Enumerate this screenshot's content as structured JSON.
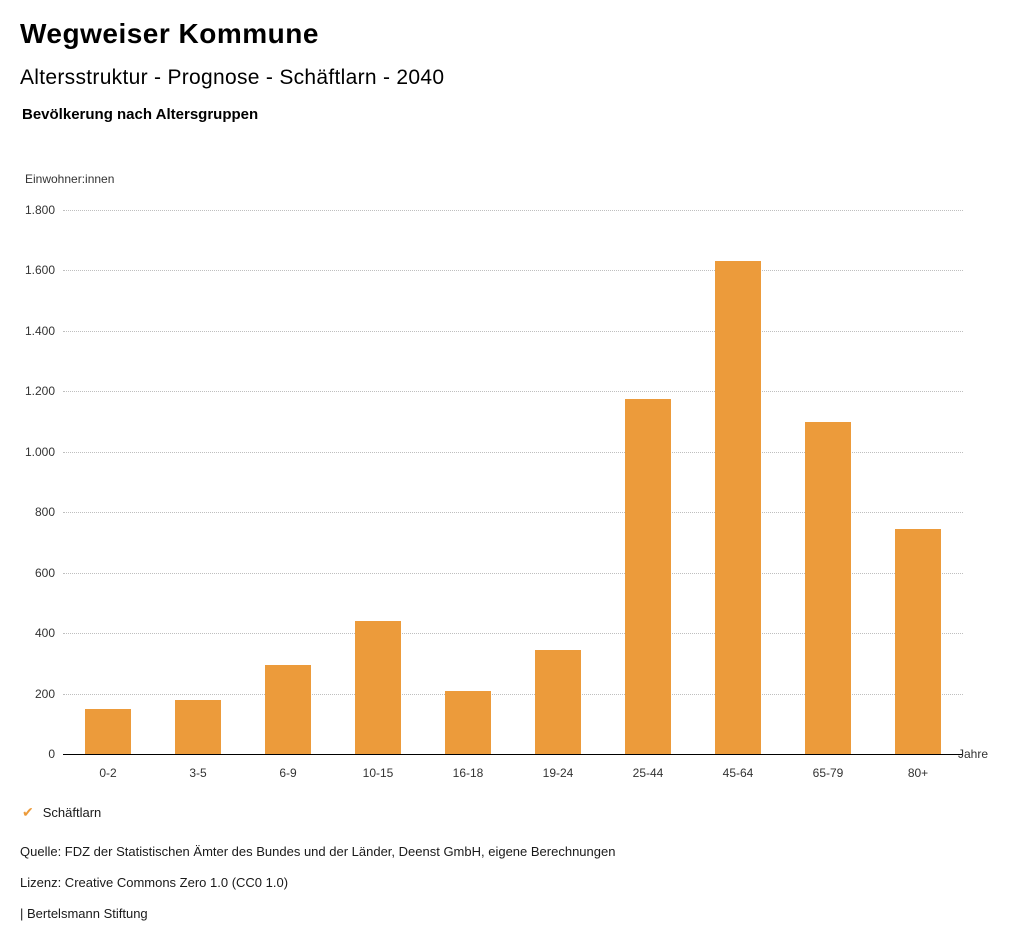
{
  "header": {
    "title": "Wegweiser Kommune",
    "subtitle": "Altersstruktur - Prognose - Schäftlarn - 2040",
    "section_title": "Bevölkerung nach Altersgruppen"
  },
  "chart_data": {
    "type": "bar",
    "title": "Bevölkerung nach Altersgruppen",
    "ylabel": "Einwohner:innen",
    "xlabel": "Jahre",
    "categories": [
      "0-2",
      "3-5",
      "6-9",
      "10-15",
      "16-18",
      "19-24",
      "25-44",
      "45-64",
      "65-79",
      "80+"
    ],
    "values": [
      150,
      180,
      295,
      440,
      210,
      345,
      1175,
      1630,
      1100,
      745
    ],
    "ylim": [
      0,
      1800
    ],
    "ytick_step": 200,
    "ytick_labels": [
      "0",
      "200",
      "400",
      "600",
      "800",
      "1.000",
      "1.200",
      "1.400",
      "1.600",
      "1.800"
    ],
    "grid": "horizontal-dotted",
    "legend_position": "bottom-left",
    "bar_color": "#EC9B3B",
    "series": [
      {
        "name": "Schäftlarn",
        "color": "#EC9B3B"
      }
    ]
  },
  "legend": {
    "check_icon": "✔",
    "label": "Schäftlarn"
  },
  "footer": {
    "source": "Quelle: FDZ der Statistischen Ämter des Bundes und der Länder, Deenst GmbH, eigene Berechnungen",
    "license": "Lizenz: Creative Commons Zero 1.0 (CC0 1.0)",
    "attribution": "| Bertelsmann Stiftung"
  }
}
